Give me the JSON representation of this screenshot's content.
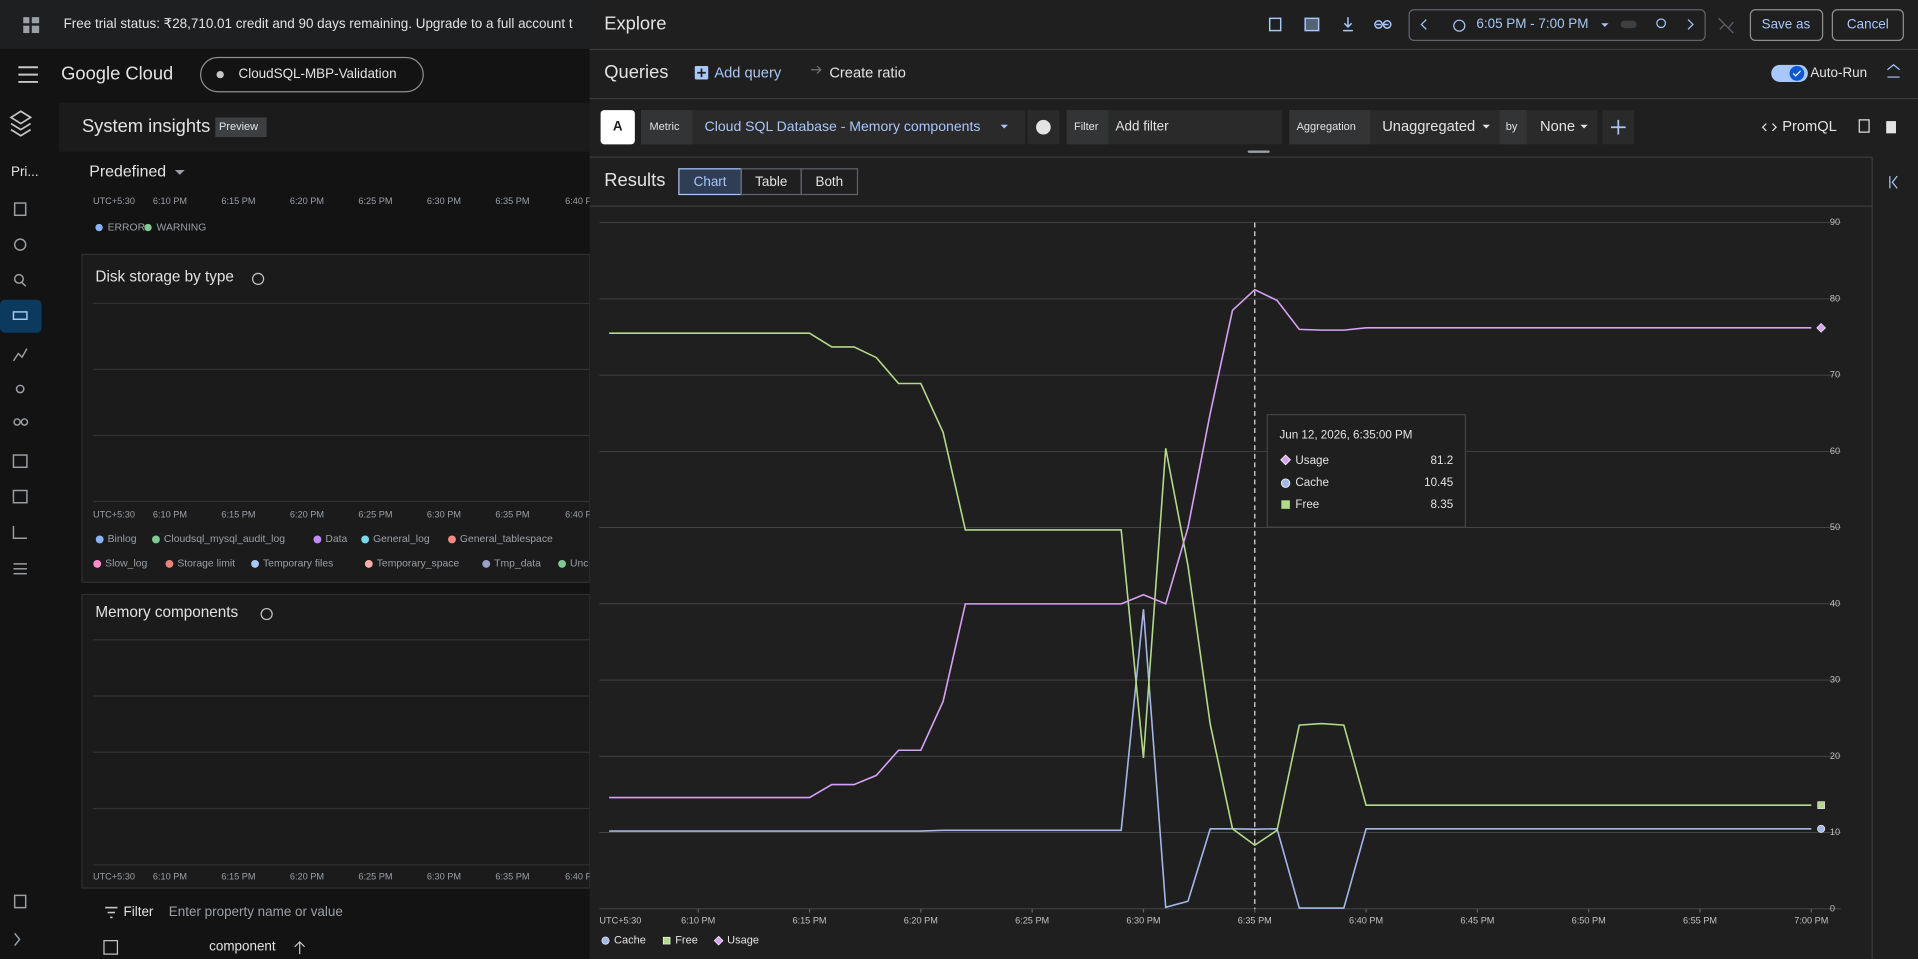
{
  "banner": "Free trial status: ₹28,710.01 credit and 90 days remaining. Upgrade to a full account t",
  "header": {
    "product": "Google Cloud",
    "project": "CloudSQL-MBP-Validation",
    "nav_short": "Pri..."
  },
  "left": {
    "title": "System insights",
    "badge": "Preview",
    "dropdown": "Predefined",
    "mini_x_labels": [
      "UTC+5:30",
      "6:10 PM",
      "6:15 PM",
      "6:20 PM",
      "6:25 PM",
      "6:30 PM",
      "6:35 PM",
      "6:40 F"
    ],
    "error_legend": [
      "ERROR",
      "WARNING"
    ],
    "disk_title": "Disk storage by type",
    "disk_legend": [
      "Binlog",
      "Cloudsql_mysql_audit_log",
      "Data",
      "General_log",
      "General_tablespace",
      "Slow_log",
      "Storage limit",
      "Temporary files",
      "Temporary_space",
      "Tmp_data",
      "Unc"
    ],
    "memory_title": "Memory components",
    "filter_label": "Filter",
    "filter_placeholder": "Enter property name or value",
    "table_header": "component"
  },
  "explore": {
    "title": "Explore",
    "time_range": "6:05 PM - 7:00 PM",
    "save": "Save as",
    "cancel": "Cancel",
    "queries": "Queries",
    "add_query": "Add query",
    "create_ratio": "Create ratio",
    "auto_run": "Auto-Run",
    "query": {
      "letter": "A",
      "metric_label": "Metric",
      "metric": "Cloud SQL Database - Memory components",
      "filter_label": "Filter",
      "filter_placeholder": "Add filter",
      "aggregation_label": "Aggregation",
      "aggregation": "Unaggregated",
      "by": "by",
      "group": "None",
      "promql": "PromQL"
    },
    "results": "Results",
    "tabs": [
      "Chart",
      "Table",
      "Both"
    ],
    "chart": {
      "type": "line",
      "x_timezone": "UTC+5:30",
      "x": [
        "6:06 PM",
        "6:07 PM",
        "6:08 PM",
        "6:09 PM",
        "6:10 PM",
        "6:11 PM",
        "6:12 PM",
        "6:13 PM",
        "6:14 PM",
        "6:15 PM",
        "6:16 PM",
        "6:17 PM",
        "6:18 PM",
        "6:19 PM",
        "6:20 PM",
        "6:21 PM",
        "6:22 PM",
        "6:23 PM",
        "6:24 PM",
        "6:25 PM",
        "6:26 PM",
        "6:27 PM",
        "6:28 PM",
        "6:29 PM",
        "6:30 PM",
        "6:31 PM",
        "6:32 PM",
        "6:33 PM",
        "6:34 PM",
        "6:35 PM",
        "6:36 PM",
        "6:37 PM",
        "6:38 PM",
        "6:39 PM",
        "6:40 PM",
        "6:41 PM",
        "6:42 PM",
        "6:43 PM",
        "6:44 PM",
        "6:45 PM",
        "6:46 PM",
        "6:47 PM",
        "6:48 PM",
        "6:49 PM",
        "6:50 PM",
        "6:51 PM",
        "6:52 PM",
        "6:53 PM",
        "6:54 PM",
        "6:55 PM",
        "6:56 PM",
        "6:57 PM",
        "6:58 PM",
        "6:59 PM",
        "7:00 PM"
      ],
      "xticks": [
        "6:10 PM",
        "6:15 PM",
        "6:20 PM",
        "6:25 PM",
        "6:30 PM",
        "6:35 PM",
        "6:40 PM",
        "6:45 PM",
        "6:50 PM",
        "6:55 PM",
        "7:00 PM"
      ],
      "ylim": [
        0,
        90
      ],
      "yticks": [
        0,
        10,
        20,
        30,
        40,
        50,
        60,
        70,
        80,
        90
      ],
      "grid": true,
      "series": [
        {
          "name": "Cache",
          "color": "#a3b8e8",
          "marker": "circle",
          "values": [
            10.2,
            10.2,
            10.2,
            10.2,
            10.2,
            10.2,
            10.2,
            10.2,
            10.2,
            10.2,
            10.2,
            10.2,
            10.2,
            10.2,
            10.2,
            10.3,
            10.3,
            10.3,
            10.3,
            10.3,
            10.3,
            10.3,
            10.3,
            10.3,
            39.3,
            0.2,
            1,
            10.5,
            10.5,
            10.45,
            10.5,
            0.1,
            0.1,
            0.1,
            10.5,
            10.5,
            10.5,
            10.5,
            10.5,
            10.5,
            10.5,
            10.5,
            10.5,
            10.5,
            10.5,
            10.5,
            10.5,
            10.5,
            10.5,
            10.5,
            10.5,
            10.5,
            10.5,
            10.5,
            10.5
          ]
        },
        {
          "name": "Free",
          "color": "#b3d98a",
          "marker": "square",
          "values": [
            75.5,
            75.5,
            75.5,
            75.5,
            75.5,
            75.5,
            75.5,
            75.5,
            75.5,
            75.5,
            73.7,
            73.7,
            72.3,
            68.9,
            68.9,
            62.5,
            49.7,
            49.7,
            49.7,
            49.7,
            49.7,
            49.7,
            49.7,
            49.7,
            19.8,
            60.4,
            45,
            24.2,
            10.5,
            8.35,
            10.3,
            24.1,
            24.3,
            24.1,
            13.6,
            13.6,
            13.6,
            13.6,
            13.6,
            13.6,
            13.6,
            13.6,
            13.6,
            13.6,
            13.6,
            13.6,
            13.6,
            13.6,
            13.6,
            13.6,
            13.6,
            13.6,
            13.6,
            13.6,
            13.6
          ]
        },
        {
          "name": "Usage",
          "color": "#d7a1f5",
          "marker": "diamond",
          "values": [
            14.6,
            14.6,
            14.6,
            14.6,
            14.6,
            14.6,
            14.6,
            14.6,
            14.6,
            14.6,
            16.3,
            16.3,
            17.5,
            20.8,
            20.8,
            27.2,
            40,
            40,
            40,
            40,
            40,
            40,
            40,
            40,
            41.2,
            40,
            50,
            65,
            78.5,
            81.2,
            79.8,
            76,
            75.9,
            75.9,
            76.2,
            76.2,
            76.2,
            76.2,
            76.2,
            76.2,
            76.2,
            76.2,
            76.2,
            76.2,
            76.2,
            76.2,
            76.2,
            76.2,
            76.2,
            76.2,
            76.2,
            76.2,
            76.2,
            76.2,
            76.2
          ]
        }
      ],
      "tooltip": {
        "title": "Jun 12, 2026, 6:35:00 PM"
      }
    }
  }
}
